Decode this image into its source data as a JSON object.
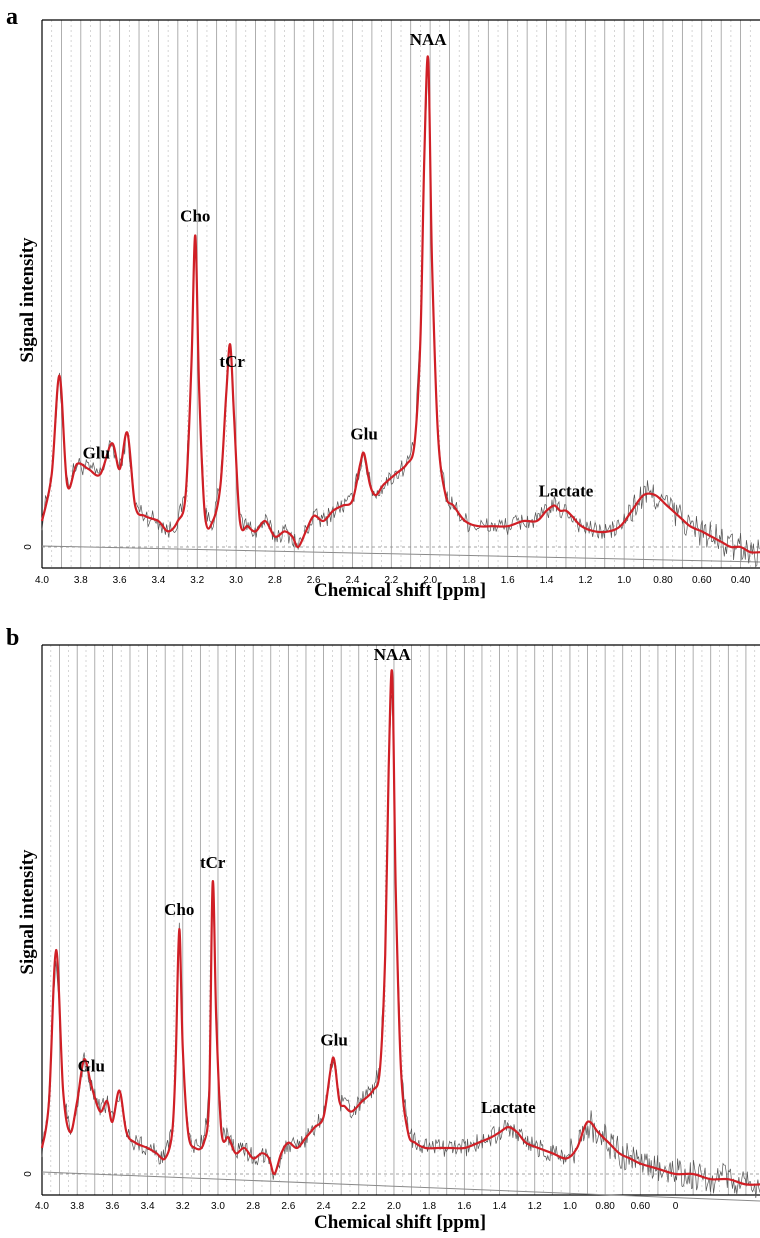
{
  "panels": [
    {
      "panel_letter": "a",
      "xlabel": "Chemical shift [ppm]",
      "ylabel": "Signal intensity",
      "zero_label": "0",
      "x_ticks": [
        "4.0",
        "3.8",
        "3.6",
        "3.4",
        "3.2",
        "3.0",
        "2.8",
        "2.6",
        "2.4",
        "2.2",
        "2.0",
        "1.8",
        "1.6",
        "1.4",
        "1.2",
        "1.0",
        "0.80",
        "0.60",
        "0.40"
      ],
      "peak_labels": [
        {
          "text": "Glu",
          "ppm": 3.72
        },
        {
          "text": "Cho",
          "ppm": 3.21
        },
        {
          "text": "tCr",
          "ppm": 3.02
        },
        {
          "text": "Glu",
          "ppm": 2.34
        },
        {
          "text": "NAA",
          "ppm": 2.01
        },
        {
          "text": "Lactate",
          "ppm": 1.3
        }
      ]
    },
    {
      "panel_letter": "b",
      "xlabel": "Chemical shift [ppm]",
      "ylabel": "Signal intensity",
      "zero_label": "0",
      "x_ticks": [
        "4.0",
        "3.8",
        "3.6",
        "3.4",
        "3.2",
        "3.0",
        "2.8",
        "2.6",
        "2.4",
        "2.2",
        "2.0",
        "1.8",
        "1.6",
        "1.4",
        "1.2",
        "1.0",
        "0.80",
        "0.60",
        "0"
      ],
      "peak_labels": [
        {
          "text": "Glu",
          "ppm": 3.72
        },
        {
          "text": "Cho",
          "ppm": 3.22
        },
        {
          "text": "tCr",
          "ppm": 3.03
        },
        {
          "text": "Glu",
          "ppm": 2.34
        },
        {
          "text": "NAA",
          "ppm": 2.01
        },
        {
          "text": "Lactate",
          "ppm": 1.35
        }
      ]
    }
  ],
  "colors": {
    "fit": "#d01f26",
    "raw": "#555555",
    "grid": "#9a9a9a",
    "axis": "#000000"
  },
  "chart_data": [
    {
      "type": "line",
      "xlabel": "Chemical shift [ppm]",
      "ylabel": "Signal intensity",
      "xlim": [
        4.0,
        0.3
      ],
      "x_reversed": true,
      "ylim": [
        -0.06,
        1.0
      ],
      "grid": true,
      "series": [
        {
          "x": [
            4.0,
            3.95,
            3.91,
            3.87,
            3.82,
            3.76,
            3.7,
            3.64,
            3.6,
            3.56,
            3.52,
            3.47,
            3.4,
            3.35,
            3.3,
            3.26,
            3.23,
            3.21,
            3.19,
            3.16,
            3.12,
            3.08,
            3.05,
            3.03,
            3.01,
            2.98,
            2.94,
            2.9,
            2.85,
            2.8,
            2.75,
            2.71,
            2.68,
            2.64,
            2.6,
            2.55,
            2.5,
            2.45,
            2.4,
            2.36,
            2.34,
            2.31,
            2.28,
            2.24,
            2.18,
            2.12,
            2.08,
            2.05,
            2.03,
            2.01,
            1.99,
            1.96,
            1.92,
            1.88,
            1.82,
            1.75,
            1.68,
            1.6,
            1.52,
            1.45,
            1.4,
            1.36,
            1.33,
            1.3,
            1.27,
            1.22,
            1.15,
            1.08,
            1.02,
            0.96,
            0.9,
            0.84,
            0.78,
            0.72,
            0.66,
            0.6,
            0.55,
            0.5,
            0.45,
            0.4,
            0.35,
            0.3
          ],
          "y": [
            0.05,
            0.14,
            0.33,
            0.12,
            0.16,
            0.15,
            0.14,
            0.2,
            0.15,
            0.22,
            0.08,
            0.06,
            0.05,
            0.03,
            0.05,
            0.1,
            0.35,
            0.6,
            0.3,
            0.06,
            0.05,
            0.12,
            0.3,
            0.39,
            0.25,
            0.05,
            0.04,
            0.03,
            0.05,
            0.02,
            0.03,
            0.02,
            0.0,
            0.03,
            0.06,
            0.05,
            0.07,
            0.08,
            0.09,
            0.16,
            0.18,
            0.12,
            0.1,
            0.12,
            0.14,
            0.16,
            0.2,
            0.4,
            0.75,
            0.94,
            0.55,
            0.22,
            0.1,
            0.08,
            0.05,
            0.04,
            0.04,
            0.04,
            0.05,
            0.05,
            0.07,
            0.08,
            0.07,
            0.07,
            0.06,
            0.04,
            0.03,
            0.03,
            0.04,
            0.07,
            0.1,
            0.1,
            0.08,
            0.06,
            0.04,
            0.03,
            0.02,
            0.01,
            0.0,
            0.0,
            -0.01,
            -0.01
          ]
        }
      ]
    },
    {
      "type": "line",
      "xlabel": "Chemical shift [ppm]",
      "ylabel": "Signal intensity",
      "xlim": [
        4.0,
        -0.08
      ],
      "x_reversed": true,
      "ylim": [
        -0.06,
        1.0
      ],
      "grid": true,
      "series": [
        {
          "x": [
            4.0,
            3.96,
            3.92,
            3.88,
            3.84,
            3.8,
            3.76,
            3.72,
            3.67,
            3.63,
            3.6,
            3.56,
            3.52,
            3.47,
            3.4,
            3.35,
            3.3,
            3.26,
            3.24,
            3.22,
            3.2,
            3.17,
            3.13,
            3.08,
            3.05,
            3.03,
            3.01,
            2.98,
            2.94,
            2.9,
            2.85,
            2.8,
            2.75,
            2.71,
            2.68,
            2.64,
            2.6,
            2.55,
            2.5,
            2.45,
            2.4,
            2.36,
            2.34,
            2.31,
            2.28,
            2.24,
            2.18,
            2.12,
            2.08,
            2.05,
            2.03,
            2.01,
            1.99,
            1.96,
            1.92,
            1.88,
            1.82,
            1.75,
            1.68,
            1.6,
            1.52,
            1.45,
            1.4,
            1.35,
            1.3,
            1.25,
            1.18,
            1.1,
            1.02,
            0.96,
            0.9,
            0.84,
            0.78,
            0.72,
            0.66,
            0.6,
            0.5,
            0.4,
            0.3,
            0.2,
            0.1,
            0.0,
            -0.08
          ],
          "y": [
            0.05,
            0.14,
            0.43,
            0.16,
            0.08,
            0.14,
            0.22,
            0.17,
            0.12,
            0.14,
            0.1,
            0.16,
            0.08,
            0.06,
            0.05,
            0.04,
            0.03,
            0.08,
            0.22,
            0.47,
            0.24,
            0.08,
            0.05,
            0.06,
            0.15,
            0.56,
            0.3,
            0.08,
            0.07,
            0.04,
            0.05,
            0.03,
            0.04,
            0.03,
            0.0,
            0.04,
            0.06,
            0.05,
            0.07,
            0.09,
            0.11,
            0.2,
            0.22,
            0.14,
            0.13,
            0.12,
            0.14,
            0.16,
            0.2,
            0.42,
            0.78,
            0.96,
            0.55,
            0.2,
            0.08,
            0.06,
            0.05,
            0.05,
            0.05,
            0.05,
            0.06,
            0.07,
            0.08,
            0.09,
            0.08,
            0.06,
            0.05,
            0.04,
            0.03,
            0.05,
            0.1,
            0.08,
            0.06,
            0.04,
            0.03,
            0.02,
            0.01,
            0.0,
            0.0,
            -0.01,
            -0.01,
            -0.02,
            -0.02
          ]
        }
      ]
    }
  ]
}
